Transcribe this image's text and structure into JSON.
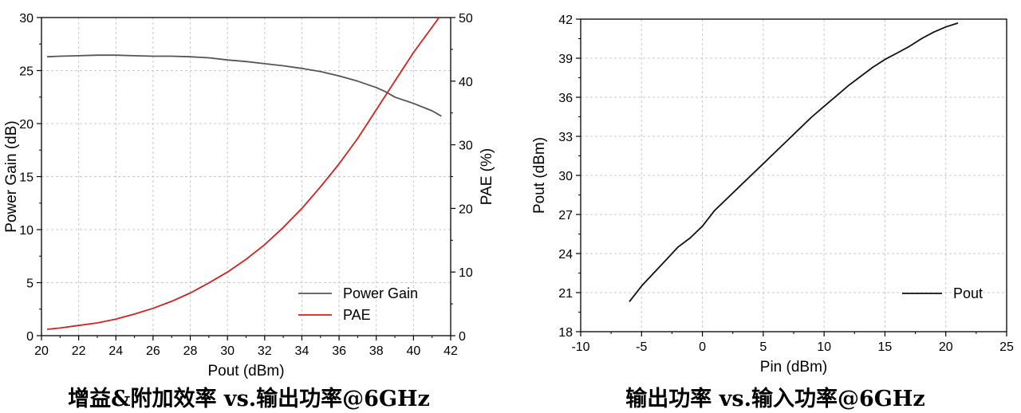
{
  "chart_data": [
    {
      "type": "line",
      "xlabel": "Pout (dBm)",
      "ylabel": "Power Gain (dB)",
      "y2label": "PAE (%)",
      "xlim": [
        20,
        42
      ],
      "ylim": [
        0,
        30
      ],
      "y2lim": [
        0,
        50
      ],
      "xticks": [
        "20",
        "22",
        "24",
        "26",
        "28",
        "30",
        "32",
        "34",
        "36",
        "38",
        "40",
        "42"
      ],
      "yticks": [
        "0",
        "5",
        "10",
        "15",
        "20",
        "25",
        "30"
      ],
      "y2ticks": [
        "0",
        "10",
        "20",
        "30",
        "40",
        "50"
      ],
      "grid": true,
      "legend_position": "bottom-right",
      "caption": "增益&附加效率 vs.输出功率@6GHz",
      "series": [
        {
          "name": "Power Gain",
          "axis": "left",
          "color": "#555555",
          "x": [
            20.3,
            21,
            22,
            23,
            24,
            25,
            26,
            27,
            28,
            29,
            30,
            31,
            32,
            33,
            34,
            35,
            36,
            37,
            38,
            38.5,
            39,
            40,
            41,
            41.5
          ],
          "y": [
            26.3,
            26.35,
            26.4,
            26.45,
            26.45,
            26.4,
            26.35,
            26.35,
            26.3,
            26.2,
            26.0,
            25.85,
            25.65,
            25.45,
            25.2,
            24.9,
            24.5,
            24.0,
            23.4,
            23.0,
            22.5,
            21.9,
            21.2,
            20.7
          ]
        },
        {
          "name": "PAE",
          "axis": "right",
          "color": "#d42020",
          "x": [
            20.3,
            21,
            22,
            23,
            24,
            25,
            26,
            27,
            28,
            29,
            30,
            31,
            32,
            33,
            34,
            35,
            36,
            37,
            38,
            39,
            40,
            41,
            41.5
          ],
          "y": [
            1.0,
            1.2,
            1.6,
            2.0,
            2.6,
            3.4,
            4.3,
            5.4,
            6.7,
            8.3,
            10.0,
            12.0,
            14.3,
            17.0,
            20.0,
            23.4,
            27.0,
            31.0,
            35.5,
            40.0,
            44.5,
            48.5,
            50.5
          ]
        }
      ]
    },
    {
      "type": "line",
      "xlabel": "Pin (dBm)",
      "ylabel": "Pout (dBm)",
      "xlim": [
        -10,
        25
      ],
      "ylim": [
        18,
        42
      ],
      "xticks": [
        "-10",
        "-5",
        "0",
        "5",
        "10",
        "15",
        "20",
        "25"
      ],
      "yticks": [
        "18",
        "21",
        "24",
        "27",
        "30",
        "33",
        "36",
        "39",
        "42"
      ],
      "grid": true,
      "legend_position": "bottom-right",
      "caption": "输出功率 vs.输入功率@6GHz",
      "series": [
        {
          "name": "Pout",
          "axis": "left",
          "color": "#111111",
          "x": [
            -6,
            -5,
            -4,
            -3,
            -2,
            -1,
            0,
            1,
            2,
            3,
            4,
            5,
            6,
            7,
            8,
            9,
            10,
            11,
            12,
            13,
            14,
            15,
            16,
            17,
            18,
            19,
            20,
            21
          ],
          "y": [
            20.3,
            21.5,
            22.5,
            23.5,
            24.5,
            25.2,
            26.1,
            27.3,
            28.2,
            29.1,
            30.0,
            30.9,
            31.8,
            32.7,
            33.6,
            34.5,
            35.3,
            36.1,
            36.9,
            37.6,
            38.3,
            38.9,
            39.4,
            39.9,
            40.5,
            41.0,
            41.4,
            41.7
          ]
        }
      ]
    }
  ]
}
